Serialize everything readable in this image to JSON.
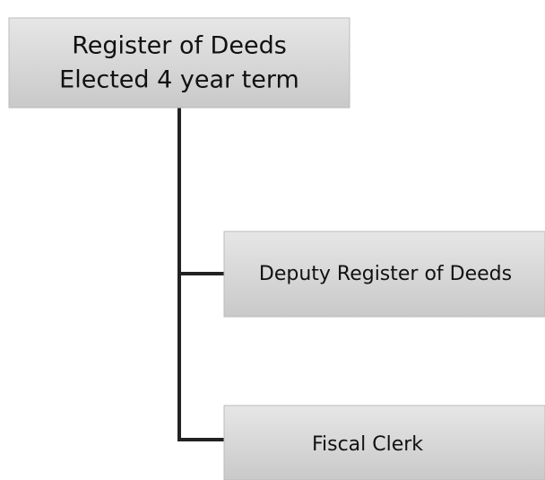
{
  "nodes": [
    {
      "label": [
        "Register of Deeds",
        "Elected 4 year term"
      ]
    },
    {
      "label": [
        "Deputy Register of Deeds"
      ]
    },
    {
      "label": [
        "Fiscal Clerk"
      ]
    }
  ]
}
